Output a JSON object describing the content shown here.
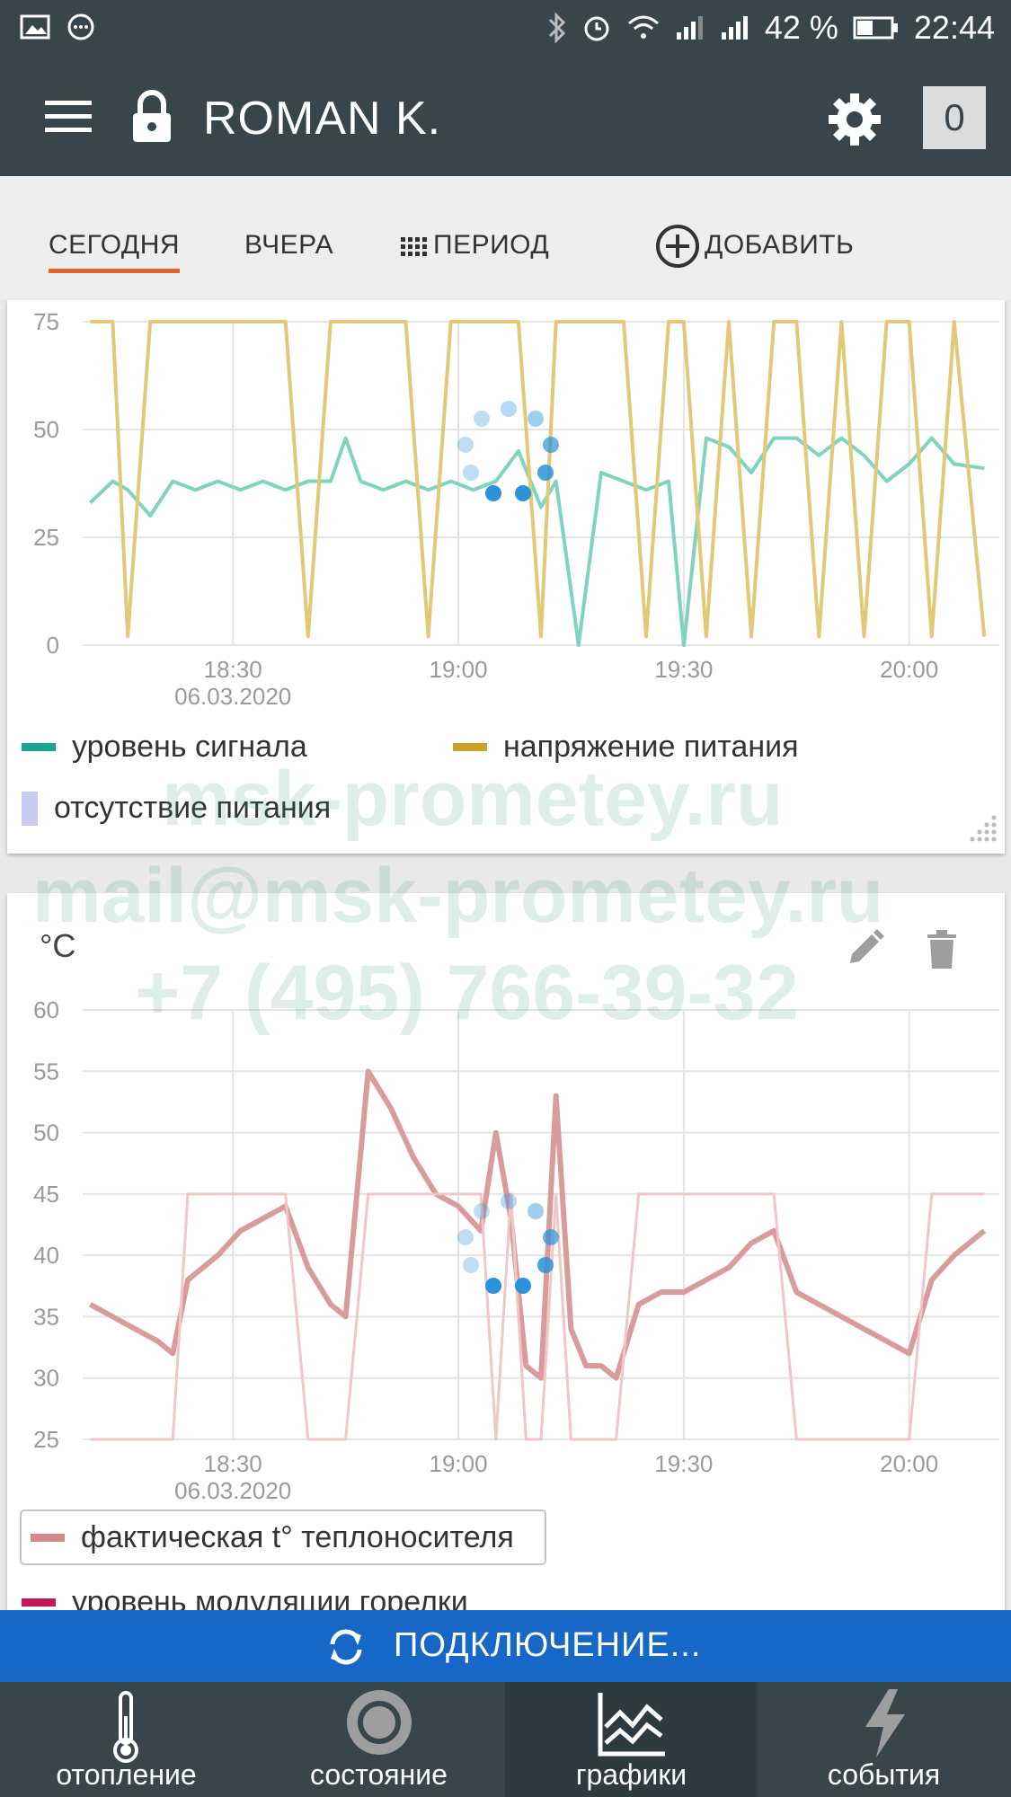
{
  "status_bar": {
    "battery": "42 %",
    "time": "22:44"
  },
  "app_bar": {
    "title": "ROMAN K.",
    "notification_count": "0"
  },
  "tabs": [
    {
      "label": "СЕГОДНЯ",
      "active": true
    },
    {
      "label": "ВЧЕРА"
    },
    {
      "label": "ПЕРИОД",
      "icon": "grid-icon"
    },
    {
      "label": "ДОБАВИТЬ",
      "icon": "plus-circle-icon"
    }
  ],
  "charts": [
    {
      "type": "line",
      "y_ticks": [
        "75",
        "50",
        "25",
        "0"
      ],
      "x_ticks": [
        "18:30",
        "19:00",
        "19:30",
        "20:00"
      ],
      "date_label": "06.03.2020",
      "legend": [
        {
          "name": "уровень сигнала",
          "color": "#1aa58f"
        },
        {
          "name": "напряжение питания",
          "color": "#c9a227"
        },
        {
          "name": "отсутствие питания",
          "color": "#c9c9f3"
        }
      ]
    },
    {
      "type": "line",
      "unit": "°C",
      "y_ticks": [
        "60",
        "55",
        "50",
        "45",
        "40",
        "35",
        "30",
        "25"
      ],
      "x_ticks": [
        "18:30",
        "19:00",
        "19:30",
        "20:00"
      ],
      "date_label": "06.03.2020",
      "legend": [
        {
          "name": "фактическая t° теплоносителя",
          "color": "#d38a8a"
        },
        {
          "name": "уровень модуляции горелки",
          "color": "#c2185b"
        }
      ]
    }
  ],
  "chart_data": [
    {
      "type": "line",
      "x": [
        "18:11",
        "18:14",
        "18:16",
        "18:19",
        "18:22",
        "18:25",
        "18:28",
        "18:31",
        "18:34",
        "18:37",
        "18:40",
        "18:43",
        "18:45",
        "18:47",
        "18:50",
        "18:53",
        "18:56",
        "18:59",
        "19:02",
        "19:05",
        "19:08",
        "19:11",
        "19:13",
        "19:16",
        "19:19",
        "19:22",
        "19:25",
        "19:28",
        "19:30",
        "19:33",
        "19:36",
        "19:39",
        "19:42",
        "19:45",
        "19:48",
        "19:51",
        "19:54",
        "19:57",
        "20:00",
        "20:03",
        "20:06",
        "20:10"
      ],
      "series": [
        {
          "name": "уровень сигнала",
          "values": [
            33,
            38,
            36,
            30,
            38,
            36,
            38,
            36,
            38,
            36,
            38,
            38,
            48,
            38,
            36,
            38,
            36,
            38,
            36,
            38,
            45,
            32,
            38,
            0,
            40,
            38,
            36,
            38,
            0,
            48,
            46,
            40,
            48,
            48,
            44,
            48,
            44,
            38,
            42,
            48,
            42,
            41
          ]
        },
        {
          "name": "напряжение питания",
          "values": [
            75,
            75,
            2,
            75,
            75,
            75,
            75,
            75,
            75,
            75,
            2,
            75,
            75,
            75,
            75,
            75,
            2,
            75,
            75,
            75,
            75,
            2,
            75,
            75,
            75,
            75,
            2,
            75,
            75,
            2,
            75,
            2,
            75,
            75,
            2,
            75,
            2,
            75,
            75,
            2,
            75,
            2
          ]
        }
      ],
      "ylim": [
        0,
        75
      ],
      "grid": true,
      "legend": "bottom"
    },
    {
      "type": "line",
      "x": [
        "18:11",
        "18:14",
        "18:17",
        "18:20",
        "18:22",
        "18:24",
        "18:26",
        "18:28",
        "18:31",
        "18:34",
        "18:37",
        "18:40",
        "18:43",
        "18:45",
        "18:48",
        "18:51",
        "18:54",
        "18:57",
        "19:00",
        "19:03",
        "19:05",
        "19:07",
        "19:09",
        "19:11",
        "19:13",
        "19:15",
        "19:17",
        "19:19",
        "19:21",
        "19:24",
        "19:27",
        "19:30",
        "19:33",
        "19:36",
        "19:39",
        "19:42",
        "19:45",
        "19:48",
        "19:51",
        "19:54",
        "19:57",
        "20:00",
        "20:03",
        "20:06",
        "20:10"
      ],
      "series": [
        {
          "name": "фактическая t° теплоносителя",
          "values": [
            36,
            35,
            34,
            33,
            32,
            38,
            39,
            40,
            42,
            43,
            44,
            39,
            36,
            35,
            55,
            52,
            48,
            45,
            44,
            42,
            50,
            43,
            31,
            30,
            53,
            34,
            31,
            31,
            30,
            36,
            37,
            37,
            38,
            39,
            41,
            42,
            37,
            36,
            35,
            34,
            33,
            32,
            38,
            40,
            42
          ]
        },
        {
          "name": "уровень модуляции горелки",
          "values": [
            25,
            25,
            25,
            25,
            25,
            45,
            45,
            45,
            45,
            45,
            45,
            25,
            25,
            25,
            45,
            45,
            45,
            45,
            45,
            45,
            25,
            45,
            25,
            25,
            45,
            25,
            25,
            25,
            25,
            45,
            45,
            45,
            45,
            45,
            45,
            45,
            25,
            25,
            25,
            25,
            25,
            25,
            45,
            45,
            45
          ]
        }
      ],
      "ylim": [
        25,
        60
      ],
      "grid": true,
      "legend": "bottom"
    }
  ],
  "connection": {
    "label": "ПОДКЛЮЧЕНИЕ..."
  },
  "bottom_nav": [
    {
      "label": "отопление",
      "icon": "thermometer-icon"
    },
    {
      "label": "состояние",
      "icon": "circle-icon"
    },
    {
      "label": "графики",
      "icon": "chart-icon",
      "active": true
    },
    {
      "label": "события",
      "icon": "lightning-icon"
    }
  ],
  "watermark": {
    "line1": "msk-prometey.ru",
    "line2": "mail@msk-prometey.ru",
    "line3": "+7 (495) 766-39-32"
  }
}
